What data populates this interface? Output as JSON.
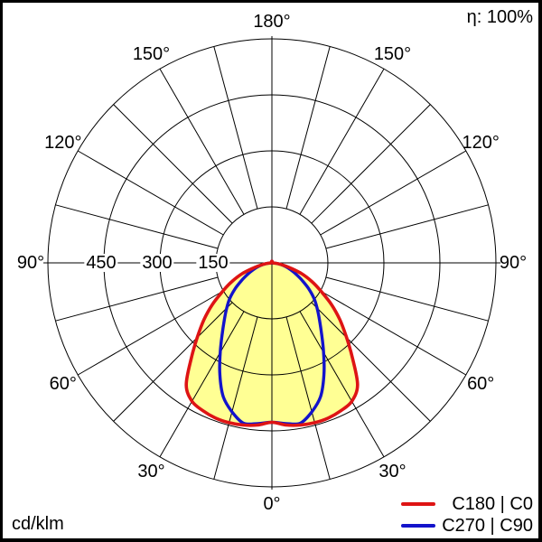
{
  "unit_label": "cd/klm",
  "efficiency_label": "η: 100%",
  "legend": {
    "items": [
      {
        "label": "C180 | C0",
        "color": "#de1414"
      },
      {
        "label": "C270 | C90",
        "color": "#1313cb"
      }
    ]
  },
  "chart_data": {
    "type": "line",
    "subtype": "polar_photometric_intensity",
    "unit": "cd/klm",
    "efficiency": "η: 100%",
    "grid": {
      "ring_values": [
        150,
        300,
        450,
        600
      ],
      "ring_labels": [
        "150",
        "300",
        "450"
      ],
      "angle_step_deg": 15,
      "angle_labels": [
        "0°",
        "30°",
        "60°",
        "90°",
        "120°",
        "150°",
        "180°"
      ],
      "max_value": 600
    },
    "gamma_deg": [
      0,
      5,
      10,
      15,
      20,
      25,
      30,
      35,
      40,
      45,
      50,
      55,
      60,
      65,
      70,
      75,
      80,
      85,
      90
    ],
    "series": [
      {
        "name": "C180 | C0",
        "color": "#de1414",
        "fill": "#ffff94",
        "symmetric": true,
        "values": [
          427,
          436,
          441,
          443,
          442,
          437,
          428,
          400,
          337,
          283,
          238,
          195,
          152,
          118,
          85,
          48,
          24,
          10,
          3
        ]
      },
      {
        "name": "C270 | C90",
        "color": "#1313cb",
        "fill": null,
        "symmetric": true,
        "values": [
          427,
          432,
          436,
          413,
          381,
          330,
          277,
          232,
          198,
          171,
          147,
          120,
          93,
          71,
          53,
          38,
          24,
          10,
          2
        ]
      }
    ]
  }
}
